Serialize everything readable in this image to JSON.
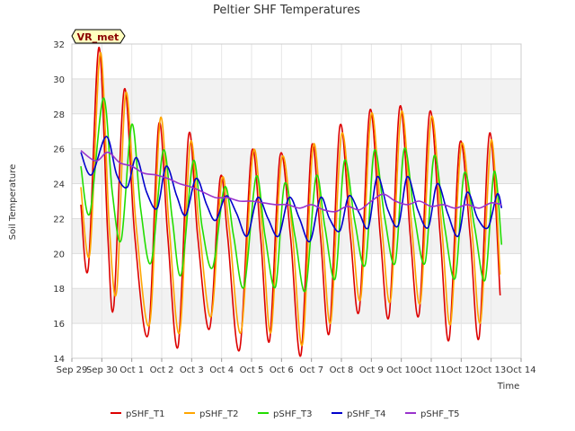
{
  "chart_data": {
    "type": "line",
    "title": "Peltier SHF Temperatures",
    "xlabel": "Time",
    "ylabel": "Soil Temperature",
    "badge": "VR_met",
    "xlim": [
      0,
      15
    ],
    "ylim": [
      14,
      32
    ],
    "x_ticks": [
      {
        "x": 0,
        "label": "Sep 29"
      },
      {
        "x": 1,
        "label": "Sep 30"
      },
      {
        "x": 2,
        "label": "Oct 1"
      },
      {
        "x": 3,
        "label": "Oct 2"
      },
      {
        "x": 4,
        "label": "Oct 3"
      },
      {
        "x": 5,
        "label": "Oct 4"
      },
      {
        "x": 6,
        "label": "Oct 5"
      },
      {
        "x": 7,
        "label": "Oct 6"
      },
      {
        "x": 8,
        "label": "Oct 7"
      },
      {
        "x": 9,
        "label": "Oct 8"
      },
      {
        "x": 10,
        "label": "Oct 9"
      },
      {
        "x": 11,
        "label": "Oct 10"
      },
      {
        "x": 12,
        "label": "Oct 11"
      },
      {
        "x": 13,
        "label": "Oct 12"
      },
      {
        "x": 14,
        "label": "Oct 13"
      },
      {
        "x": 15,
        "label": "Oct 14"
      }
    ],
    "y_ticks": [
      14,
      16,
      18,
      20,
      22,
      24,
      26,
      28,
      30,
      32
    ],
    "grid": true,
    "legend_position": "bottom",
    "series": [
      {
        "name": "pSHF_T1",
        "color": "#dd0000",
        "points": [
          [
            0.3,
            22.8
          ],
          [
            0.55,
            19.2
          ],
          [
            0.9,
            31.8
          ],
          [
            1.2,
            21.0
          ],
          [
            1.4,
            17.0
          ],
          [
            1.75,
            29.4
          ],
          [
            2.1,
            21.0
          ],
          [
            2.55,
            15.4
          ],
          [
            2.9,
            27.4
          ],
          [
            3.2,
            21.0
          ],
          [
            3.55,
            14.7
          ],
          [
            3.9,
            26.8
          ],
          [
            4.2,
            21.0
          ],
          [
            4.6,
            15.7
          ],
          [
            4.95,
            24.3
          ],
          [
            5.2,
            21.0
          ],
          [
            5.6,
            14.5
          ],
          [
            6.0,
            25.8
          ],
          [
            6.3,
            21.0
          ],
          [
            6.6,
            15.0
          ],
          [
            6.95,
            25.6
          ],
          [
            7.3,
            21.0
          ],
          [
            7.65,
            14.2
          ],
          [
            8.0,
            26.1
          ],
          [
            8.3,
            21.0
          ],
          [
            8.6,
            15.5
          ],
          [
            8.95,
            27.3
          ],
          [
            9.3,
            21.0
          ],
          [
            9.6,
            16.8
          ],
          [
            9.95,
            28.2
          ],
          [
            10.3,
            21.0
          ],
          [
            10.6,
            16.5
          ],
          [
            10.95,
            28.4
          ],
          [
            11.3,
            21.0
          ],
          [
            11.6,
            16.6
          ],
          [
            11.95,
            28.1
          ],
          [
            12.3,
            21.0
          ],
          [
            12.6,
            15.1
          ],
          [
            12.95,
            26.3
          ],
          [
            13.3,
            21.0
          ],
          [
            13.6,
            15.2
          ],
          [
            13.95,
            26.9
          ],
          [
            14.3,
            17.6
          ]
        ]
      },
      {
        "name": "pSHF_T2",
        "color": "#ffa500",
        "points": [
          [
            0.3,
            23.8
          ],
          [
            0.6,
            20.0
          ],
          [
            0.95,
            31.5
          ],
          [
            1.25,
            21.5
          ],
          [
            1.5,
            17.9
          ],
          [
            1.8,
            29.2
          ],
          [
            2.15,
            21.5
          ],
          [
            2.6,
            16.0
          ],
          [
            2.95,
            27.7
          ],
          [
            3.25,
            21.5
          ],
          [
            3.6,
            15.5
          ],
          [
            3.95,
            26.3
          ],
          [
            4.25,
            21.5
          ],
          [
            4.65,
            16.4
          ],
          [
            5.0,
            24.2
          ],
          [
            5.25,
            21.5
          ],
          [
            5.65,
            15.5
          ],
          [
            6.05,
            25.8
          ],
          [
            6.35,
            21.5
          ],
          [
            6.65,
            15.5
          ],
          [
            7.0,
            25.4
          ],
          [
            7.35,
            21.5
          ],
          [
            7.7,
            14.8
          ],
          [
            8.05,
            26.1
          ],
          [
            8.35,
            21.5
          ],
          [
            8.65,
            16.1
          ],
          [
            9.0,
            26.8
          ],
          [
            9.35,
            21.5
          ],
          [
            9.65,
            17.5
          ],
          [
            10.0,
            28.0
          ],
          [
            10.35,
            21.5
          ],
          [
            10.65,
            17.4
          ],
          [
            11.0,
            28.1
          ],
          [
            11.35,
            21.5
          ],
          [
            11.65,
            17.3
          ],
          [
            12.0,
            27.8
          ],
          [
            12.35,
            21.5
          ],
          [
            12.65,
            16.0
          ],
          [
            13.0,
            26.2
          ],
          [
            13.35,
            21.5
          ],
          [
            13.65,
            16.1
          ],
          [
            14.0,
            26.5
          ],
          [
            14.3,
            18.8
          ]
        ]
      },
      {
        "name": "pSHF_T3",
        "color": "#22dd00",
        "points": [
          [
            0.3,
            25.0
          ],
          [
            0.6,
            22.3
          ],
          [
            1.05,
            28.9
          ],
          [
            1.35,
            23.5
          ],
          [
            1.65,
            20.8
          ],
          [
            2.0,
            27.4
          ],
          [
            2.3,
            22.5
          ],
          [
            2.65,
            19.5
          ],
          [
            3.05,
            25.9
          ],
          [
            3.35,
            22.0
          ],
          [
            3.65,
            18.8
          ],
          [
            4.05,
            25.3
          ],
          [
            4.35,
            21.5
          ],
          [
            4.7,
            19.2
          ],
          [
            5.1,
            23.8
          ],
          [
            5.4,
            21.0
          ],
          [
            5.75,
            18.1
          ],
          [
            6.15,
            24.4
          ],
          [
            6.45,
            21.0
          ],
          [
            6.8,
            18.1
          ],
          [
            7.1,
            24.0
          ],
          [
            7.45,
            21.0
          ],
          [
            7.8,
            17.9
          ],
          [
            8.15,
            24.4
          ],
          [
            8.45,
            21.5
          ],
          [
            8.8,
            18.6
          ],
          [
            9.1,
            25.3
          ],
          [
            9.45,
            21.8
          ],
          [
            9.8,
            19.4
          ],
          [
            10.1,
            25.9
          ],
          [
            10.45,
            22.0
          ],
          [
            10.8,
            19.5
          ],
          [
            11.1,
            26.0
          ],
          [
            11.45,
            22.0
          ],
          [
            11.8,
            19.5
          ],
          [
            12.1,
            25.6
          ],
          [
            12.45,
            21.5
          ],
          [
            12.8,
            18.6
          ],
          [
            13.1,
            24.6
          ],
          [
            13.45,
            21.5
          ],
          [
            13.8,
            18.5
          ],
          [
            14.1,
            24.7
          ],
          [
            14.35,
            20.5
          ]
        ]
      },
      {
        "name": "pSHF_T4",
        "color": "#0000cc",
        "points": [
          [
            0.3,
            25.8
          ],
          [
            0.65,
            24.5
          ],
          [
            1.15,
            26.7
          ],
          [
            1.5,
            24.5
          ],
          [
            1.85,
            23.8
          ],
          [
            2.15,
            25.5
          ],
          [
            2.5,
            23.5
          ],
          [
            2.85,
            22.6
          ],
          [
            3.15,
            25.0
          ],
          [
            3.5,
            23.3
          ],
          [
            3.8,
            22.2
          ],
          [
            4.15,
            24.3
          ],
          [
            4.5,
            22.8
          ],
          [
            4.8,
            21.9
          ],
          [
            5.15,
            23.3
          ],
          [
            5.5,
            22.3
          ],
          [
            5.85,
            21.0
          ],
          [
            6.2,
            23.2
          ],
          [
            6.55,
            22.0
          ],
          [
            6.9,
            21.0
          ],
          [
            7.25,
            23.2
          ],
          [
            7.6,
            22.0
          ],
          [
            7.95,
            20.7
          ],
          [
            8.3,
            23.2
          ],
          [
            8.6,
            22.0
          ],
          [
            8.95,
            21.3
          ],
          [
            9.25,
            23.3
          ],
          [
            9.6,
            22.3
          ],
          [
            9.9,
            21.5
          ],
          [
            10.2,
            24.4
          ],
          [
            10.55,
            22.5
          ],
          [
            10.9,
            21.6
          ],
          [
            11.2,
            24.4
          ],
          [
            11.55,
            22.5
          ],
          [
            11.9,
            21.5
          ],
          [
            12.2,
            24.0
          ],
          [
            12.55,
            22.3
          ],
          [
            12.9,
            21.0
          ],
          [
            13.2,
            23.5
          ],
          [
            13.55,
            22.0
          ],
          [
            13.9,
            21.5
          ],
          [
            14.2,
            23.4
          ],
          [
            14.35,
            22.6
          ]
        ]
      },
      {
        "name": "pSHF_T5",
        "color": "#9933cc",
        "points": [
          [
            0.3,
            25.9
          ],
          [
            0.8,
            25.3
          ],
          [
            1.2,
            25.8
          ],
          [
            1.6,
            25.2
          ],
          [
            2.0,
            25.0
          ],
          [
            2.4,
            24.6
          ],
          [
            2.8,
            24.5
          ],
          [
            3.2,
            24.3
          ],
          [
            3.6,
            24.0
          ],
          [
            4.0,
            23.8
          ],
          [
            4.4,
            23.5
          ],
          [
            4.8,
            23.2
          ],
          [
            5.2,
            23.2
          ],
          [
            5.6,
            23.0
          ],
          [
            6.0,
            23.0
          ],
          [
            6.4,
            22.9
          ],
          [
            6.8,
            22.8
          ],
          [
            7.2,
            22.8
          ],
          [
            7.6,
            22.6
          ],
          [
            8.0,
            22.8
          ],
          [
            8.4,
            22.5
          ],
          [
            8.8,
            22.4
          ],
          [
            9.2,
            22.7
          ],
          [
            9.6,
            22.5
          ],
          [
            10.0,
            23.0
          ],
          [
            10.4,
            23.4
          ],
          [
            10.8,
            23.0
          ],
          [
            11.2,
            22.8
          ],
          [
            11.6,
            23.0
          ],
          [
            12.0,
            22.7
          ],
          [
            12.4,
            22.8
          ],
          [
            12.8,
            22.6
          ],
          [
            13.2,
            22.8
          ],
          [
            13.6,
            22.6
          ],
          [
            14.0,
            22.9
          ],
          [
            14.35,
            22.8
          ]
        ]
      }
    ]
  }
}
